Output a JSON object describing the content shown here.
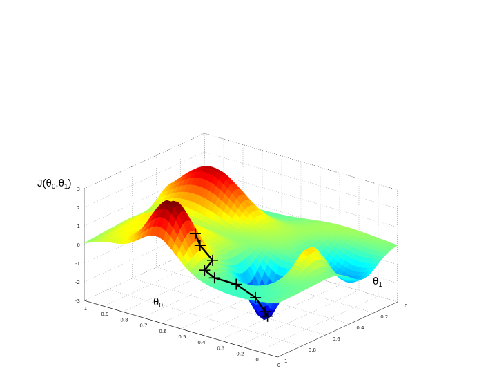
{
  "chart_data": {
    "type": "surface",
    "zlabel": {
      "main": "J(",
      "p1": "θ",
      "s1": "0",
      "comma": ",",
      "p2": "θ",
      "s2": "1",
      "close": ")"
    },
    "xlabel": {
      "sym": "θ",
      "sub": "0"
    },
    "ylabel": {
      "sym": "θ",
      "sub": "1"
    },
    "z_ticks": [
      "3",
      "2",
      "1",
      "0",
      "-1",
      "-2",
      "-3"
    ],
    "theta0_ticks": [
      "1",
      "0.9",
      "0.8",
      "0.7",
      "0.6",
      "0.5",
      "0.4",
      "0.3",
      "0.2",
      "0.1",
      "0"
    ],
    "theta1_ticks": [
      "1",
      "0.8",
      "0.6",
      "0.4",
      "0.2",
      "0"
    ],
    "theta0_range": [
      0,
      1
    ],
    "theta1_range": [
      0,
      1
    ],
    "z_range": [
      -3,
      3
    ],
    "colormap": "jet",
    "grid": true,
    "descent_path": [
      {
        "t0": 0.5,
        "t1": 0.88,
        "z": 1.75
      },
      {
        "t0": 0.5,
        "t1": 0.84,
        "z": 1.0
      },
      {
        "t0": 0.46,
        "t1": 0.8,
        "z": 0.2
      },
      {
        "t0": 0.52,
        "t1": 0.77,
        "z": -0.6
      },
      {
        "t0": 0.5,
        "t1": 0.72,
        "z": -1.1
      },
      {
        "t0": 0.4,
        "t1": 0.7,
        "z": -1.2
      },
      {
        "t0": 0.35,
        "t1": 0.62,
        "z": -2.0
      },
      {
        "t0": 0.3,
        "t1": 0.62,
        "z": -2.6
      },
      {
        "t0": 0.3,
        "t1": 0.6,
        "z": -2.9
      }
    ]
  }
}
